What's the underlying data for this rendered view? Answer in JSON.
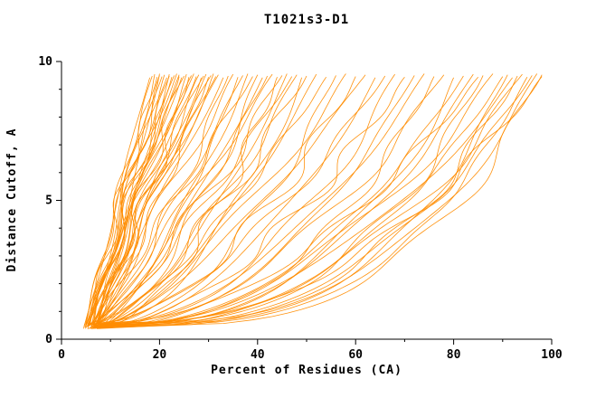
{
  "chart_data": {
    "type": "line",
    "title": "T1021s3-D1",
    "xlabel": "Percent of Residues (CA)",
    "ylabel": "Distance Cutoff, A",
    "xlim": [
      0,
      100
    ],
    "ylim": [
      0,
      10
    ],
    "x_major_ticks": [
      0,
      20,
      40,
      60,
      80,
      100
    ],
    "y_major_ticks": [
      0,
      5,
      10
    ],
    "x_minor_step": 10,
    "y_minor_step": 1,
    "line_color": "#FF8C00",
    "axis_color": "#000000",
    "background": "#FFFFFF",
    "legend": "none",
    "grid": "off",
    "description": "GDT-style plot: bundle of orange monotonic curves, each giving percent of CA residues (x) within a distance cutoff (y). Curves start near x=5 at cutoff ~0.4 A and terminate near cutoff ~9.5 A at x values from ~18 to ~98.",
    "curve_encoding": "[x_start_percent, x_end_percent_at_top, shape_exponent p] with x(t) = start + (end-start)*t^p, t = normalized cutoff over ~0.4..9.5 A",
    "curves": [
      [
        4.5,
        18,
        1.0
      ],
      [
        5,
        18.5,
        1.1
      ],
      [
        5.5,
        19,
        0.9
      ],
      [
        6,
        19.5,
        1.2
      ],
      [
        6.5,
        20,
        1.0
      ],
      [
        7,
        20,
        0.85
      ],
      [
        4.8,
        20.5,
        1.15
      ],
      [
        5.2,
        21,
        0.95
      ],
      [
        5.8,
        21.5,
        1.25
      ],
      [
        6.2,
        22,
        1.05
      ],
      [
        6.8,
        22,
        0.9
      ],
      [
        7.2,
        22.5,
        1.1
      ],
      [
        4.6,
        23,
        1.0
      ],
      [
        5.4,
        23.5,
        1.2
      ],
      [
        6.4,
        24,
        0.85
      ],
      [
        7.4,
        24,
        1.15
      ],
      [
        5.1,
        24.5,
        0.95
      ],
      [
        5.9,
        25,
        1.3
      ],
      [
        6.6,
        25.5,
        1.0
      ],
      [
        7.1,
        26,
        0.9
      ],
      [
        4.9,
        26.5,
        1.1
      ],
      [
        5.6,
        27,
        1.2
      ],
      [
        6.1,
        27.5,
        0.95
      ],
      [
        6.9,
        28,
        1.05
      ],
      [
        7.6,
        28.5,
        0.9
      ],
      [
        5.3,
        29,
        1.25
      ],
      [
        6.3,
        29.5,
        1.0
      ],
      [
        7.0,
        30,
        0.85
      ],
      [
        5.7,
        30.5,
        1.1
      ],
      [
        6.7,
        31,
        0.95
      ],
      [
        7.3,
        31.5,
        1.2
      ],
      [
        5.0,
        32,
        1.0
      ],
      [
        5.5,
        33,
        0.9
      ],
      [
        6.5,
        34,
        0.75
      ],
      [
        7.5,
        35,
        1.0
      ],
      [
        5.2,
        36,
        0.6
      ],
      [
        6.2,
        37,
        0.85
      ],
      [
        7.2,
        38,
        0.7
      ],
      [
        5.8,
        39,
        0.95
      ],
      [
        6.8,
        40,
        0.6
      ],
      [
        7.8,
        41,
        0.8
      ],
      [
        5.4,
        42,
        0.7
      ],
      [
        6.4,
        43,
        0.9
      ],
      [
        7.4,
        44,
        0.55
      ],
      [
        5.6,
        45,
        0.75
      ],
      [
        6.6,
        46,
        0.6
      ],
      [
        7.6,
        47,
        0.85
      ],
      [
        5.9,
        48,
        0.65
      ],
      [
        6.9,
        49,
        0.5
      ],
      [
        7.9,
        50,
        0.75
      ],
      [
        5.3,
        52,
        0.6
      ],
      [
        6.3,
        54,
        0.7
      ],
      [
        7.3,
        56,
        0.5
      ],
      [
        5.7,
        58,
        0.65
      ],
      [
        6.7,
        60,
        0.55
      ],
      [
        7.7,
        62,
        0.7
      ],
      [
        6.0,
        64,
        0.5
      ],
      [
        7.0,
        66,
        0.6
      ],
      [
        6.5,
        68,
        0.45
      ],
      [
        7.5,
        70,
        0.55
      ],
      [
        6.0,
        72,
        0.45
      ],
      [
        7.0,
        74,
        0.5
      ],
      [
        8.0,
        76,
        0.4
      ],
      [
        6.4,
        78,
        0.5
      ],
      [
        7.4,
        80,
        0.35
      ],
      [
        8.2,
        82,
        0.45
      ],
      [
        6.8,
        84,
        0.4
      ],
      [
        7.8,
        85,
        0.5
      ],
      [
        8.4,
        86,
        0.35
      ],
      [
        6.2,
        88,
        0.45
      ],
      [
        7.2,
        90,
        0.4
      ],
      [
        8.1,
        91,
        0.3
      ],
      [
        6.6,
        92,
        0.45
      ],
      [
        7.6,
        93,
        0.35
      ],
      [
        8.3,
        94,
        0.4
      ],
      [
        6.9,
        95,
        0.3
      ],
      [
        7.9,
        96,
        0.38
      ],
      [
        8.5,
        97,
        0.33
      ],
      [
        7.1,
        98,
        0.42
      ],
      [
        8.0,
        98,
        0.3
      ]
    ]
  }
}
